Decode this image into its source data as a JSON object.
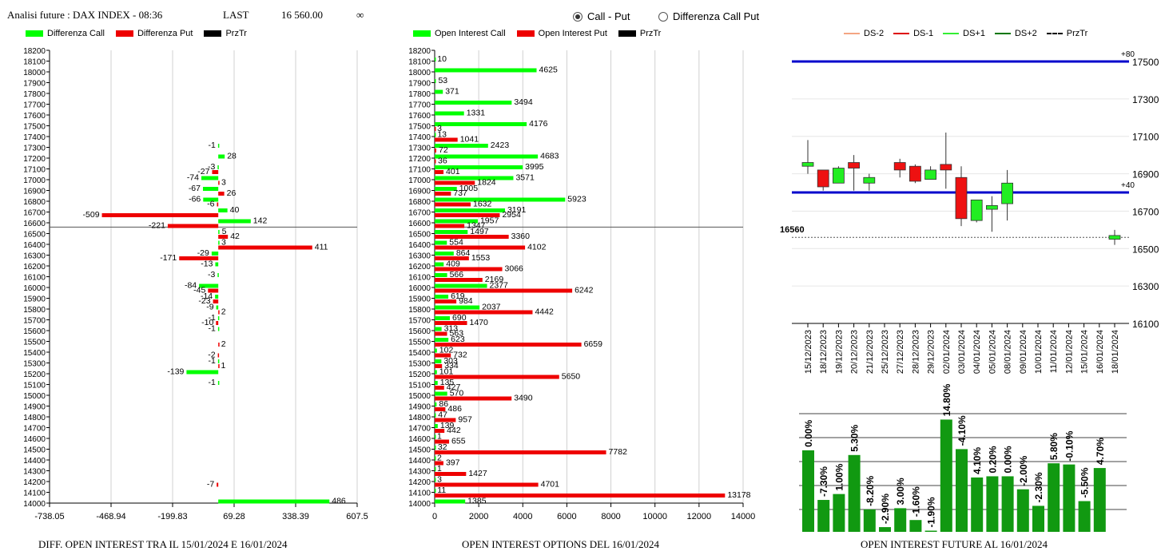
{
  "header": {
    "title": "Analisi future : DAX INDEX - 08:36",
    "last_label": "LAST",
    "last_value": "16 560.00",
    "infinity": "∞"
  },
  "view_options": {
    "selected": "Call - Put",
    "options": [
      "Call - Put",
      "Differenza Call Put"
    ]
  },
  "legends": {
    "left": [
      {
        "label": "Differenza Call",
        "color": "#00ff00"
      },
      {
        "label": "Differenza Put",
        "color": "#ee0000"
      },
      {
        "label": "PrzTr",
        "color": "#000000"
      }
    ],
    "mid": [
      {
        "label": "Open Interest Call",
        "color": "#00ff00"
      },
      {
        "label": "Open Interest Put",
        "color": "#ee0000"
      },
      {
        "label": "PrzTr",
        "color": "#000000"
      }
    ],
    "right": [
      {
        "label": "DS-2",
        "color": "#f4a582",
        "style": "line"
      },
      {
        "label": "DS-1",
        "color": "#dd0000",
        "style": "line"
      },
      {
        "label": "DS+1",
        "color": "#33ee33",
        "style": "line"
      },
      {
        "label": "DS+2",
        "color": "#007700",
        "style": "line"
      },
      {
        "label": "PrzTr",
        "color": "#000000",
        "style": "dashed"
      }
    ]
  },
  "footers": {
    "left": "DIFF. OPEN INTEREST TRA IL 15/01/2024 E 16/01/2024",
    "mid": "OPEN INTEREST OPTIONS DEL 16/01/2024",
    "right": "OPEN INTEREST FUTURE AL 16/01/2024"
  },
  "chart_data": [
    {
      "type": "bar",
      "orientation": "horizontal",
      "title": "DIFF. OPEN INTEREST TRA IL 15/01/2024 E 16/01/2024",
      "xticks": [
        "-738.05",
        "-468.94",
        "-199.83",
        "69.28",
        "338.39",
        "607.5"
      ],
      "xlim": [
        -738.05,
        607.5
      ],
      "price_line": 16560,
      "series": [
        {
          "name": "Differenza Call",
          "color": "#00ff00",
          "points": [
            [
              17300,
              -1
            ],
            [
              17200,
              28
            ],
            [
              17100,
              -3
            ],
            [
              17000,
              -74
            ],
            [
              16900,
              -67
            ],
            [
              16800,
              -66
            ],
            [
              16700,
              40
            ],
            [
              16600,
              142
            ],
            [
              16500,
              5
            ],
            [
              16400,
              3
            ],
            [
              16300,
              -29
            ],
            [
              16200,
              -13
            ],
            [
              16100,
              -3
            ],
            [
              16000,
              -84
            ],
            [
              15900,
              -14
            ],
            [
              15800,
              -9
            ],
            [
              15700,
              -1
            ],
            [
              15600,
              -1
            ],
            [
              15300,
              -1
            ],
            [
              15200,
              -139
            ],
            [
              15100,
              -1
            ],
            [
              14000,
              486
            ]
          ]
        },
        {
          "name": "Differenza Put",
          "color": "#ee0000",
          "points": [
            [
              17100,
              -27
            ],
            [
              17000,
              3
            ],
            [
              16900,
              26
            ],
            [
              16800,
              -6
            ],
            [
              16700,
              -509
            ],
            [
              16600,
              -221
            ],
            [
              16500,
              42
            ],
            [
              16400,
              411
            ],
            [
              16300,
              -171
            ],
            [
              16000,
              -45
            ],
            [
              15900,
              -23
            ],
            [
              15800,
              2
            ],
            [
              15700,
              -10
            ],
            [
              15500,
              2
            ],
            [
              15400,
              -2
            ],
            [
              15300,
              1
            ],
            [
              14200,
              -7
            ]
          ]
        }
      ]
    },
    {
      "type": "bar",
      "orientation": "horizontal",
      "title": "OPEN INTEREST OPTIONS DEL 16/01/2024",
      "xticks": [
        "0",
        "2000",
        "4000",
        "6000",
        "8000",
        "10000",
        "12000",
        "14000"
      ],
      "xlim": [
        0,
        14000
      ],
      "price_line": 16560,
      "series": [
        {
          "name": "Open Interest Call",
          "color": "#00ff00",
          "points": [
            [
              18100,
              10
            ],
            [
              18000,
              4625
            ],
            [
              17900,
              53
            ],
            [
              17800,
              371
            ],
            [
              17700,
              3494
            ],
            [
              17600,
              1331
            ],
            [
              17500,
              4176
            ],
            [
              17400,
              13
            ],
            [
              17300,
              2423
            ],
            [
              17200,
              4683
            ],
            [
              17100,
              3995
            ],
            [
              17000,
              3571
            ],
            [
              16900,
              1005
            ],
            [
              16800,
              5923
            ],
            [
              16700,
              3191
            ],
            [
              16600,
              1957
            ],
            [
              16500,
              1497
            ],
            [
              16400,
              554
            ],
            [
              16300,
              864
            ],
            [
              16200,
              409
            ],
            [
              16100,
              566
            ],
            [
              16000,
              2377
            ],
            [
              15900,
              619
            ],
            [
              15800,
              2037
            ],
            [
              15700,
              690
            ],
            [
              15600,
              313
            ],
            [
              15500,
              623
            ],
            [
              15400,
              102
            ],
            [
              15300,
              303
            ],
            [
              15200,
              101
            ],
            [
              15100,
              135
            ],
            [
              15000,
              570
            ],
            [
              14900,
              86
            ],
            [
              14800,
              47
            ],
            [
              14700,
              139
            ],
            [
              14600,
              1
            ],
            [
              14500,
              32
            ],
            [
              14400,
              2
            ],
            [
              14300,
              1
            ],
            [
              14200,
              3
            ],
            [
              14100,
              11
            ],
            [
              14000,
              1385
            ]
          ]
        },
        {
          "name": "Open Interest Put",
          "color": "#ee0000",
          "points": [
            [
              17500,
              3
            ],
            [
              17400,
              1041
            ],
            [
              17300,
              72
            ],
            [
              17200,
              36
            ],
            [
              17100,
              401
            ],
            [
              17000,
              1824
            ],
            [
              16900,
              737
            ],
            [
              16800,
              1632
            ],
            [
              16700,
              2954
            ],
            [
              16600,
              1347
            ],
            [
              16500,
              3360
            ],
            [
              16400,
              4102
            ],
            [
              16300,
              1553
            ],
            [
              16200,
              3066
            ],
            [
              16100,
              2169
            ],
            [
              16000,
              6242
            ],
            [
              15900,
              984
            ],
            [
              15800,
              4442
            ],
            [
              15700,
              1470
            ],
            [
              15600,
              563
            ],
            [
              15500,
              6659
            ],
            [
              15400,
              732
            ],
            [
              15300,
              334
            ],
            [
              15200,
              5650
            ],
            [
              15100,
              427
            ],
            [
              15000,
              3490
            ],
            [
              14900,
              486
            ],
            [
              14800,
              957
            ],
            [
              14700,
              442
            ],
            [
              14600,
              655
            ],
            [
              14500,
              7782
            ],
            [
              14400,
              397
            ],
            [
              14300,
              1427
            ],
            [
              14200,
              4701
            ],
            [
              14100,
              13178
            ]
          ]
        }
      ]
    },
    {
      "type": "candlestick",
      "title": "OPEN INTEREST FUTURE AL 16/01/2024",
      "yticks": [
        "16100",
        "16300",
        "16500",
        "16700",
        "16900",
        "17100",
        "17300",
        "17500"
      ],
      "ylim": [
        16100,
        17500
      ],
      "price_label": "16560",
      "price": 16560,
      "levels": [
        {
          "label": "+80",
          "value": 17500
        },
        {
          "label": "+40",
          "value": 16800
        }
      ],
      "dates": [
        "15/12/2023",
        "18/12/2023",
        "19/12/2023",
        "20/12/2023",
        "21/12/2023",
        "25/12/2023",
        "27/12/2023",
        "28/12/2023",
        "29/12/2023",
        "02/01/2024",
        "03/01/2024",
        "04/01/2024",
        "05/01/2024",
        "08/01/2024",
        "09/01/2024",
        "10/01/2024",
        "11/01/2024",
        "12/01/2024",
        "15/01/2024",
        "16/01/2024",
        "18/01/2024"
      ],
      "candles": [
        {
          "date": "15/12/2023",
          "open": 16940,
          "close": 16960,
          "high": 17080,
          "low": 16900,
          "color": "green"
        },
        {
          "date": "18/12/2023",
          "open": 16920,
          "close": 16830,
          "high": 16920,
          "low": 16810,
          "color": "red"
        },
        {
          "date": "19/12/2023",
          "open": 16850,
          "close": 16930,
          "high": 16940,
          "low": 16850,
          "color": "green"
        },
        {
          "date": "20/12/2023",
          "open": 16960,
          "close": 16930,
          "high": 17000,
          "low": 16810,
          "color": "red"
        },
        {
          "date": "21/12/2023",
          "open": 16850,
          "close": 16880,
          "high": 16900,
          "low": 16810,
          "color": "green"
        },
        {
          "date": "27/12/2023",
          "open": 16960,
          "close": 16920,
          "high": 16980,
          "low": 16880,
          "color": "red"
        },
        {
          "date": "28/12/2023",
          "open": 16940,
          "close": 16860,
          "high": 16950,
          "low": 16850,
          "color": "red"
        },
        {
          "date": "29/12/2023",
          "open": 16870,
          "close": 16920,
          "high": 16940,
          "low": 16870,
          "color": "green"
        },
        {
          "date": "02/01/2024",
          "open": 16950,
          "close": 16920,
          "high": 17120,
          "low": 16820,
          "color": "red"
        },
        {
          "date": "03/01/2024",
          "open": 16880,
          "close": 16660,
          "high": 16940,
          "low": 16620,
          "color": "red"
        },
        {
          "date": "04/01/2024",
          "open": 16650,
          "close": 16760,
          "high": 16760,
          "low": 16640,
          "color": "green"
        },
        {
          "date": "05/01/2024",
          "open": 16710,
          "close": 16730,
          "high": 16780,
          "low": 16590,
          "color": "green"
        },
        {
          "date": "08/01/2024",
          "open": 16740,
          "close": 16850,
          "high": 16920,
          "low": 16650,
          "color": "green"
        },
        {
          "date": "18/01/2024",
          "open": 16550,
          "close": 16570,
          "high": 16600,
          "low": 16520,
          "color": "green"
        }
      ],
      "bars": [
        {
          "label": "0.00%",
          "value": 0.0
        },
        {
          "label": "-7.30%",
          "value": -7.3
        },
        {
          "label": "1.00%",
          "value": 1.0
        },
        {
          "label": "5.30%",
          "value": 5.3
        },
        {
          "label": "-8.20%",
          "value": -8.2
        },
        {
          "label": "-2.90%",
          "value": -2.9
        },
        {
          "label": "3.00%",
          "value": 3.0
        },
        {
          "label": "-1.60%",
          "value": -1.6
        },
        {
          "label": "-1.90%",
          "value": -1.9
        },
        {
          "label": "14.80%",
          "value": 14.8
        },
        {
          "label": "-4.10%",
          "value": -4.1
        },
        {
          "label": "4.10%",
          "value": 4.1
        },
        {
          "label": "0.20%",
          "value": 0.2
        },
        {
          "label": "0.00%",
          "value": 0.0
        },
        {
          "label": "-2.00%",
          "value": -2.0
        },
        {
          "label": "-2.30%",
          "value": -2.3
        },
        {
          "label": "5.80%",
          "value": 5.8
        },
        {
          "label": "-0.10%",
          "value": -0.1
        },
        {
          "label": "-5.50%",
          "value": -5.5
        },
        {
          "label": "4.70%",
          "value": 4.7
        }
      ],
      "bar_level_fraction": [
        0.69,
        0.27,
        0.32,
        0.65,
        0.19,
        0.04,
        0.2,
        0.1,
        0.01,
        0.95,
        0.7,
        0.46,
        0.47,
        0.47,
        0.36,
        0.22,
        0.58,
        0.57,
        0.26,
        0.54
      ]
    }
  ]
}
